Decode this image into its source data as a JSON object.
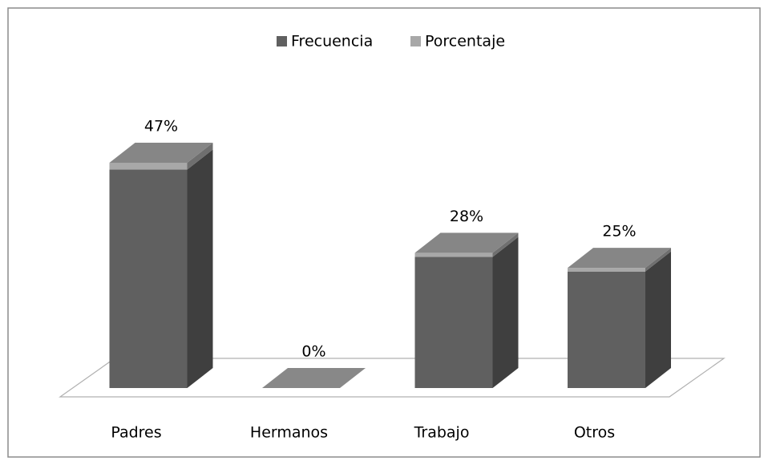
{
  "chart_data": {
    "type": "bar3d_stacked",
    "categories": [
      "Padres",
      "Hermanos",
      "Trabajo",
      "Otros"
    ],
    "series": [
      {
        "name": "Frecuencia",
        "color": "#606060",
        "values": [
          15,
          0,
          9,
          8
        ]
      },
      {
        "name": "Porcentaje",
        "color": "#a8a8a8",
        "values": [
          0.47,
          0,
          0.28,
          0.25
        ],
        "value_labels": [
          "47%",
          "0%",
          "28%",
          "25%"
        ]
      }
    ],
    "legend": "top"
  }
}
